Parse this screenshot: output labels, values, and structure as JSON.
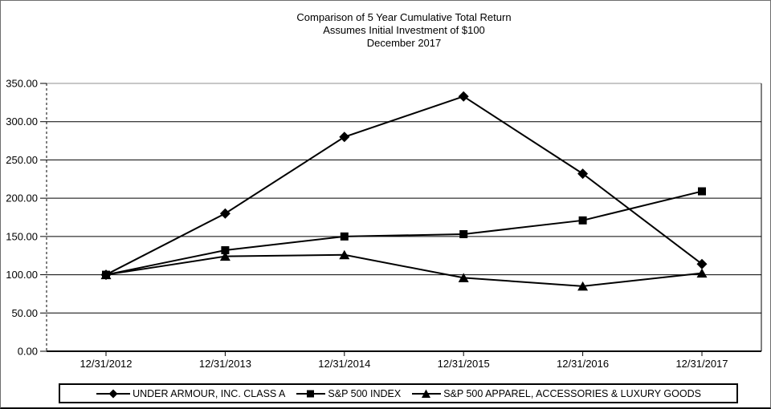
{
  "title": {
    "line1": "Comparison of 5 Year Cumulative Total Return",
    "line2": "Assumes Initial Investment of $100",
    "line3": "December 2017"
  },
  "chart_data": {
    "type": "line",
    "x": [
      "12/31/2012",
      "12/31/2013",
      "12/31/2014",
      "12/31/2015",
      "12/31/2016",
      "12/31/2017"
    ],
    "series": [
      {
        "name": "UNDER ARMOUR, INC. CLASS A",
        "marker": "diamond",
        "values": [
          100,
          180,
          280,
          333,
          232,
          114
        ]
      },
      {
        "name": "S&P 500 INDEX",
        "marker": "square",
        "values": [
          100,
          132,
          150,
          153,
          171,
          209
        ]
      },
      {
        "name": "S&P 500 APPAREL, ACCESSORIES & LUXURY GOODS",
        "marker": "triangle",
        "values": [
          100,
          124,
          126,
          96,
          85,
          102
        ]
      }
    ],
    "y_ticks": [
      "0.00",
      "50.00",
      "100.00",
      "150.00",
      "200.00",
      "250.00",
      "300.00",
      "350.00"
    ],
    "ylim": [
      0,
      350
    ],
    "y_step": 50,
    "grid": true,
    "legend_position": "bottom",
    "line_color": "#000000",
    "grid_color": "#000000",
    "top_border_color": "#8f8f8f",
    "marker_color": "#000000"
  }
}
